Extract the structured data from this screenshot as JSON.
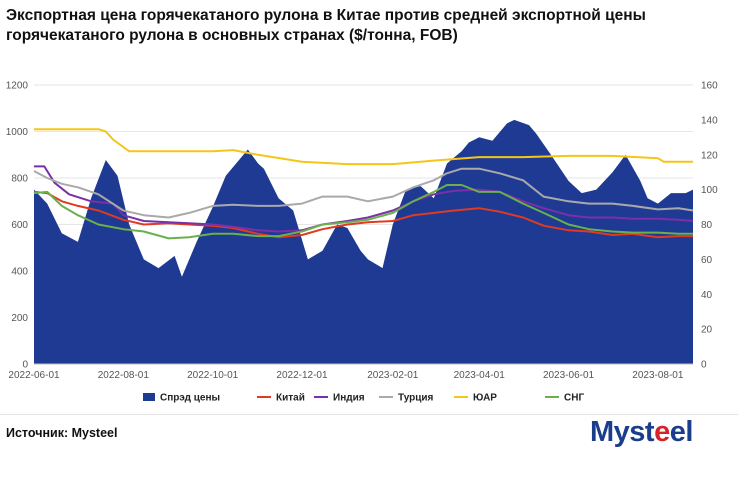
{
  "title": {
    "line1": "Экспортная цена горячекатаного рулона в Китае против средней экспортной цены",
    "line2": "горячекатаного рулона в основных странах ($/тонна, FOB)"
  },
  "source": "Источник: Mysteel",
  "logo": {
    "main": "Mysteel",
    "accent_letter": "e"
  },
  "chart_data": {
    "type": "area+line",
    "x_ticks": [
      "2022-06-01",
      "2022-08-01",
      "2022-10-01",
      "2022-12-01",
      "2023-02-01",
      "2023-04-01",
      "2023-06-01",
      "2023-08-01"
    ],
    "x_range": [
      "2022-06-01",
      "2023-08-25"
    ],
    "y_left": {
      "min": 0,
      "max": 1200,
      "ticks": [
        0,
        200,
        400,
        600,
        800,
        1000,
        1200
      ]
    },
    "y_right": {
      "min": 0,
      "max": 160,
      "ticks": [
        0,
        20,
        40,
        60,
        80,
        100,
        120,
        140,
        160
      ]
    },
    "grid": true,
    "legend_position": "bottom",
    "series": [
      {
        "name": "Спрэд цены",
        "type": "area",
        "axis": "right",
        "color": "#1f3a93",
        "points": [
          [
            "2022-06-01",
            100
          ],
          [
            "2022-06-10",
            92
          ],
          [
            "2022-06-20",
            75
          ],
          [
            "2022-07-01",
            70
          ],
          [
            "2022-07-10",
            95
          ],
          [
            "2022-07-20",
            117
          ],
          [
            "2022-07-28",
            108
          ],
          [
            "2022-08-05",
            80
          ],
          [
            "2022-08-15",
            60
          ],
          [
            "2022-08-25",
            55
          ],
          [
            "2022-09-05",
            62
          ],
          [
            "2022-09-10",
            50
          ],
          [
            "2022-09-20",
            70
          ],
          [
            "2022-10-01",
            90
          ],
          [
            "2022-10-10",
            108
          ],
          [
            "2022-10-20",
            118
          ],
          [
            "2022-10-25",
            123
          ],
          [
            "2022-11-01",
            115
          ],
          [
            "2022-11-05",
            112
          ],
          [
            "2022-11-15",
            95
          ],
          [
            "2022-11-25",
            88
          ],
          [
            "2022-12-05",
            60
          ],
          [
            "2022-12-15",
            65
          ],
          [
            "2022-12-25",
            80
          ],
          [
            "2023-01-01",
            78
          ],
          [
            "2023-01-10",
            65
          ],
          [
            "2023-01-15",
            60
          ],
          [
            "2023-01-25",
            55
          ],
          [
            "2023-02-01",
            80
          ],
          [
            "2023-02-10",
            100
          ],
          [
            "2023-02-20",
            102
          ],
          [
            "2023-03-01",
            95
          ],
          [
            "2023-03-10",
            115
          ],
          [
            "2023-03-20",
            122
          ],
          [
            "2023-03-25",
            127
          ],
          [
            "2023-04-01",
            130
          ],
          [
            "2023-04-10",
            128
          ],
          [
            "2023-04-20",
            138
          ],
          [
            "2023-04-25",
            140
          ],
          [
            "2023-05-05",
            137
          ],
          [
            "2023-05-10",
            132
          ],
          [
            "2023-05-20",
            120
          ],
          [
            "2023-05-28",
            110
          ],
          [
            "2023-06-01",
            105
          ],
          [
            "2023-06-10",
            98
          ],
          [
            "2023-06-20",
            100
          ],
          [
            "2023-07-01",
            110
          ],
          [
            "2023-07-10",
            120
          ],
          [
            "2023-07-20",
            105
          ],
          [
            "2023-07-25",
            95
          ],
          [
            "2023-08-01",
            92
          ],
          [
            "2023-08-10",
            98
          ],
          [
            "2023-08-20",
            98
          ],
          [
            "2023-08-25",
            100
          ]
        ]
      },
      {
        "name": "Китай",
        "type": "line",
        "axis": "left",
        "color": "#e03a22",
        "points": [
          [
            "2022-06-01",
            740
          ],
          [
            "2022-06-10",
            735
          ],
          [
            "2022-06-20",
            700
          ],
          [
            "2022-07-01",
            680
          ],
          [
            "2022-07-15",
            660
          ],
          [
            "2022-08-01",
            620
          ],
          [
            "2022-08-15",
            600
          ],
          [
            "2022-09-01",
            605
          ],
          [
            "2022-09-15",
            600
          ],
          [
            "2022-10-01",
            595
          ],
          [
            "2022-10-15",
            585
          ],
          [
            "2022-11-01",
            560
          ],
          [
            "2022-11-15",
            545
          ],
          [
            "2022-12-01",
            555
          ],
          [
            "2022-12-15",
            580
          ],
          [
            "2023-01-01",
            600
          ],
          [
            "2023-01-15",
            610
          ],
          [
            "2023-02-01",
            615
          ],
          [
            "2023-02-15",
            640
          ],
          [
            "2023-03-01",
            650
          ],
          [
            "2023-03-15",
            660
          ],
          [
            "2023-04-01",
            670
          ],
          [
            "2023-04-15",
            655
          ],
          [
            "2023-05-01",
            630
          ],
          [
            "2023-05-15",
            595
          ],
          [
            "2023-06-01",
            575
          ],
          [
            "2023-06-15",
            570
          ],
          [
            "2023-07-01",
            555
          ],
          [
            "2023-07-15",
            560
          ],
          [
            "2023-08-01",
            545
          ],
          [
            "2023-08-15",
            550
          ],
          [
            "2023-08-25",
            550
          ]
        ]
      },
      {
        "name": "Индия",
        "type": "line",
        "axis": "left",
        "color": "#7b2fa8",
        "points": [
          [
            "2022-06-01",
            850
          ],
          [
            "2022-06-08",
            850
          ],
          [
            "2022-06-15",
            780
          ],
          [
            "2022-06-25",
            730
          ],
          [
            "2022-07-10",
            700
          ],
          [
            "2022-07-25",
            690
          ],
          [
            "2022-08-01",
            640
          ],
          [
            "2022-08-15",
            615
          ],
          [
            "2022-09-01",
            610
          ],
          [
            "2022-09-15",
            605
          ],
          [
            "2022-10-01",
            600
          ],
          [
            "2022-10-15",
            590
          ],
          [
            "2022-11-01",
            575
          ],
          [
            "2022-11-15",
            570
          ],
          [
            "2022-12-01",
            575
          ],
          [
            "2022-12-15",
            600
          ],
          [
            "2023-01-01",
            615
          ],
          [
            "2023-01-15",
            630
          ],
          [
            "2023-02-01",
            660
          ],
          [
            "2023-02-15",
            700
          ],
          [
            "2023-03-01",
            730
          ],
          [
            "2023-03-15",
            745
          ],
          [
            "2023-04-01",
            750
          ],
          [
            "2023-04-15",
            740
          ],
          [
            "2023-05-01",
            700
          ],
          [
            "2023-05-15",
            670
          ],
          [
            "2023-06-01",
            640
          ],
          [
            "2023-06-15",
            630
          ],
          [
            "2023-07-01",
            630
          ],
          [
            "2023-07-15",
            625
          ],
          [
            "2023-08-01",
            625
          ],
          [
            "2023-08-15",
            620
          ],
          [
            "2023-08-25",
            615
          ]
        ]
      },
      {
        "name": "Турция",
        "type": "line",
        "axis": "left",
        "color": "#a9a9a9",
        "points": [
          [
            "2022-06-01",
            830
          ],
          [
            "2022-06-10",
            800
          ],
          [
            "2022-06-20",
            775
          ],
          [
            "2022-07-01",
            760
          ],
          [
            "2022-07-15",
            730
          ],
          [
            "2022-08-01",
            660
          ],
          [
            "2022-08-15",
            640
          ],
          [
            "2022-09-01",
            630
          ],
          [
            "2022-09-15",
            650
          ],
          [
            "2022-10-01",
            680
          ],
          [
            "2022-10-15",
            685
          ],
          [
            "2022-11-01",
            680
          ],
          [
            "2022-11-15",
            680
          ],
          [
            "2022-12-01",
            690
          ],
          [
            "2022-12-15",
            720
          ],
          [
            "2023-01-01",
            720
          ],
          [
            "2023-01-15",
            700
          ],
          [
            "2023-02-01",
            720
          ],
          [
            "2023-02-15",
            760
          ],
          [
            "2023-03-01",
            790
          ],
          [
            "2023-03-10",
            820
          ],
          [
            "2023-03-20",
            840
          ],
          [
            "2023-04-01",
            840
          ],
          [
            "2023-04-15",
            820
          ],
          [
            "2023-05-01",
            790
          ],
          [
            "2023-05-15",
            720
          ],
          [
            "2023-06-01",
            700
          ],
          [
            "2023-06-15",
            690
          ],
          [
            "2023-07-01",
            690
          ],
          [
            "2023-07-15",
            680
          ],
          [
            "2023-08-01",
            665
          ],
          [
            "2023-08-15",
            670
          ],
          [
            "2023-08-25",
            660
          ]
        ]
      },
      {
        "name": "ЮАР",
        "type": "line",
        "axis": "left",
        "color": "#f5c518",
        "points": [
          [
            "2022-06-01",
            1010
          ],
          [
            "2022-07-15",
            1010
          ],
          [
            "2022-07-20",
            1000
          ],
          [
            "2022-07-25",
            965
          ],
          [
            "2022-08-05",
            915
          ],
          [
            "2022-10-01",
            915
          ],
          [
            "2022-10-15",
            920
          ],
          [
            "2022-11-01",
            900
          ],
          [
            "2022-12-01",
            870
          ],
          [
            "2023-01-01",
            860
          ],
          [
            "2023-02-01",
            860
          ],
          [
            "2023-03-01",
            875
          ],
          [
            "2023-04-01",
            890
          ],
          [
            "2023-05-01",
            890
          ],
          [
            "2023-06-01",
            895
          ],
          [
            "2023-07-01",
            895
          ],
          [
            "2023-08-01",
            885
          ],
          [
            "2023-08-05",
            870
          ],
          [
            "2023-08-25",
            870
          ]
        ]
      },
      {
        "name": "СНГ",
        "type": "line",
        "axis": "left",
        "color": "#6ab04c",
        "points": [
          [
            "2022-06-01",
            735
          ],
          [
            "2022-06-10",
            740
          ],
          [
            "2022-06-20",
            680
          ],
          [
            "2022-07-01",
            640
          ],
          [
            "2022-07-15",
            600
          ],
          [
            "2022-08-01",
            580
          ],
          [
            "2022-08-15",
            570
          ],
          [
            "2022-09-01",
            540
          ],
          [
            "2022-09-15",
            545
          ],
          [
            "2022-10-01",
            560
          ],
          [
            "2022-10-15",
            560
          ],
          [
            "2022-11-01",
            550
          ],
          [
            "2022-11-15",
            550
          ],
          [
            "2022-12-01",
            570
          ],
          [
            "2022-12-15",
            600
          ],
          [
            "2023-01-01",
            610
          ],
          [
            "2023-01-15",
            620
          ],
          [
            "2023-02-01",
            650
          ],
          [
            "2023-02-15",
            700
          ],
          [
            "2023-03-01",
            740
          ],
          [
            "2023-03-10",
            770
          ],
          [
            "2023-03-20",
            770
          ],
          [
            "2023-04-01",
            740
          ],
          [
            "2023-04-15",
            740
          ],
          [
            "2023-05-01",
            690
          ],
          [
            "2023-05-15",
            650
          ],
          [
            "2023-06-01",
            600
          ],
          [
            "2023-06-15",
            580
          ],
          [
            "2023-07-01",
            570
          ],
          [
            "2023-07-15",
            565
          ],
          [
            "2023-08-01",
            565
          ],
          [
            "2023-08-15",
            560
          ],
          [
            "2023-08-25",
            560
          ]
        ]
      }
    ]
  }
}
